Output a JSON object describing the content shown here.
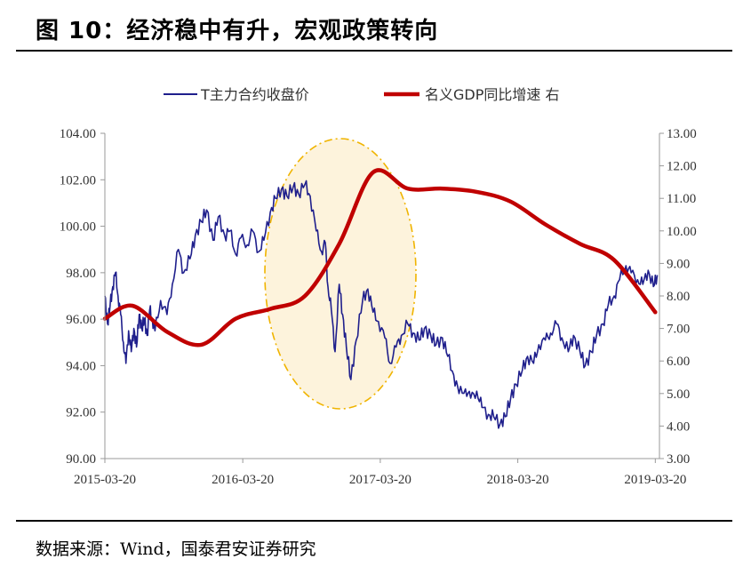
{
  "figure": {
    "title": "图 10：经济稳中有升，宏观政策转向",
    "source": "数据来源：Wind，国泰君安证券研究"
  },
  "colors": {
    "series_t": "#1f1f8c",
    "series_gdp": "#c00000",
    "ellipse_fill": "#fdf3dc",
    "ellipse_stroke": "#f0b400",
    "axis": "#999999"
  },
  "chart_data": {
    "type": "line",
    "x_tick_labels": [
      "2015-03-20",
      "2016-03-20",
      "2017-03-20",
      "2018-03-20",
      "2019-03-20"
    ],
    "y_left_tick_labels": [
      "90.00",
      "92.00",
      "94.00",
      "96.00",
      "98.00",
      "100.00",
      "102.00",
      "104.00"
    ],
    "y_right_tick_labels": [
      "3.00",
      "4.00",
      "5.00",
      "6.00",
      "7.00",
      "8.00",
      "9.00",
      "10.00",
      "11.00",
      "12.00",
      "13.00"
    ],
    "ylim_left": [
      90,
      104
    ],
    "ylim_right": [
      3,
      13
    ],
    "xlim": [
      "2015-03-20",
      "2019-03-31"
    ],
    "legend_position": "top-center",
    "annotation": "highlight ellipse over 2016-06 to 2017-06",
    "series": [
      {
        "name": "T主力合约收盘价",
        "axis": "left",
        "x": [
          "2015-03-20",
          "2015-03-27",
          "2015-04-03",
          "2015-04-10",
          "2015-04-17",
          "2015-04-24",
          "2015-05-01",
          "2015-05-08",
          "2015-05-15",
          "2015-05-22",
          "2015-05-29",
          "2015-06-05",
          "2015-06-12",
          "2015-06-19",
          "2015-06-26",
          "2015-07-03",
          "2015-07-10",
          "2015-07-17",
          "2015-07-24",
          "2015-07-31",
          "2015-08-15",
          "2015-09-01",
          "2015-09-15",
          "2015-10-01",
          "2015-10-15",
          "2015-11-01",
          "2015-11-15",
          "2015-12-01",
          "2015-12-15",
          "2016-01-01",
          "2016-01-15",
          "2016-02-01",
          "2016-02-15",
          "2016-03-01",
          "2016-03-15",
          "2016-04-01",
          "2016-04-15",
          "2016-05-01",
          "2016-05-15",
          "2016-06-01",
          "2016-06-15",
          "2016-07-01",
          "2016-07-15",
          "2016-08-01",
          "2016-08-15",
          "2016-09-01",
          "2016-09-15",
          "2016-10-01",
          "2016-10-15",
          "2016-10-25",
          "2016-11-01",
          "2016-11-10",
          "2016-11-20",
          "2016-12-01",
          "2016-12-10",
          "2016-12-20",
          "2017-01-01",
          "2017-01-15",
          "2017-02-01",
          "2017-02-15",
          "2017-03-01",
          "2017-03-15",
          "2017-04-01",
          "2017-04-15",
          "2017-05-01",
          "2017-05-15",
          "2017-06-01",
          "2017-06-15",
          "2017-07-01",
          "2017-07-15",
          "2017-08-01",
          "2017-08-15",
          "2017-09-01",
          "2017-09-15",
          "2017-10-01",
          "2017-10-15",
          "2017-11-01",
          "2017-11-15",
          "2017-12-01",
          "2017-12-15",
          "2018-01-01",
          "2018-01-15",
          "2018-02-01",
          "2018-02-15",
          "2018-03-01",
          "2018-03-15",
          "2018-04-01",
          "2018-04-15",
          "2018-05-01",
          "2018-05-15",
          "2018-06-01",
          "2018-06-15",
          "2018-07-01",
          "2018-07-15",
          "2018-08-01",
          "2018-08-15",
          "2018-09-01",
          "2018-09-15",
          "2018-10-01",
          "2018-10-15",
          "2018-11-01",
          "2018-11-15",
          "2018-12-01",
          "2018-12-15",
          "2019-01-01",
          "2019-01-15",
          "2019-02-01",
          "2019-02-15",
          "2019-03-01",
          "2019-03-15",
          "2019-03-25"
        ],
        "y": [
          97.0,
          95.8,
          96.6,
          97.4,
          98.0,
          97.0,
          96.2,
          95.0,
          94.1,
          95.5,
          94.6,
          95.6,
          94.8,
          96.2,
          95.6,
          96.0,
          95.3,
          96.4,
          96.0,
          95.5,
          96.8,
          96.2,
          97.5,
          99.0,
          98.0,
          98.6,
          99.6,
          100.2,
          100.7,
          99.4,
          100.4,
          99.6,
          99.8,
          98.8,
          99.5,
          99.2,
          99.8,
          98.9,
          99.4,
          100.6,
          101.2,
          101.6,
          101.3,
          101.7,
          101.4,
          101.8,
          101.3,
          99.8,
          98.9,
          99.3,
          97.4,
          96.4,
          94.6,
          97.5,
          96.2,
          94.8,
          93.4,
          95.1,
          96.8,
          97.3,
          96.3,
          95.9,
          95.2,
          94.1,
          94.8,
          95.3,
          95.8,
          95.4,
          95.1,
          95.6,
          95.3,
          94.9,
          95.2,
          94.4,
          93.6,
          92.8,
          93.0,
          92.6,
          92.9,
          92.2,
          91.9,
          91.8,
          91.5,
          91.8,
          92.6,
          93.2,
          93.8,
          94.4,
          94.1,
          94.9,
          95.1,
          95.4,
          95.8,
          95.2,
          94.6,
          95.3,
          94.6,
          94.0,
          94.6,
          95.3,
          95.8,
          96.6,
          97.0,
          97.7,
          98.3,
          98.0,
          97.7,
          97.5,
          98.1,
          97.4,
          97.9
        ]
      },
      {
        "name": "名义GDP同比增速 右",
        "axis": "right",
        "x": [
          "2015-03-20",
          "2015-06-01",
          "2015-09-01",
          "2015-12-01",
          "2016-03-01",
          "2016-06-01",
          "2016-09-01",
          "2016-12-01",
          "2017-03-01",
          "2017-06-01",
          "2017-09-01",
          "2017-12-01",
          "2018-03-01",
          "2018-06-01",
          "2018-09-01",
          "2018-12-01",
          "2019-03-20"
        ],
        "y": [
          7.3,
          7.7,
          6.9,
          6.5,
          7.3,
          7.6,
          8.0,
          9.6,
          11.8,
          11.3,
          11.3,
          11.2,
          10.9,
          10.2,
          9.6,
          9.1,
          7.5
        ]
      }
    ]
  }
}
